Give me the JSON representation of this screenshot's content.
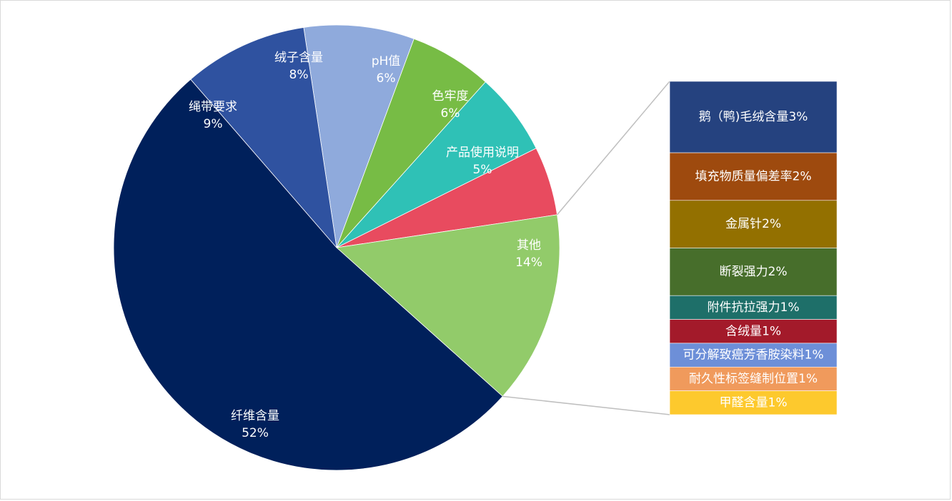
{
  "chart_data": {
    "type": "pie",
    "series": [
      {
        "category": "绒子含量",
        "value": 8,
        "label": "8%",
        "color": "#8faadc"
      },
      {
        "category": "pH值",
        "value": 6,
        "label": "6%",
        "color": "#77bc45"
      },
      {
        "category": "色牢度",
        "value": 6,
        "label": "6%",
        "color": "#2fc1b6"
      },
      {
        "category": "产品使用说明",
        "value": 5,
        "label": "5%",
        "color": "#e84b5f"
      },
      {
        "category": "其他",
        "value": 14,
        "label": "14%",
        "color": "#92cb6a"
      },
      {
        "category": "纤维含量",
        "value": 52,
        "label": "52%",
        "color": "#00205b"
      },
      {
        "category": "绳带要求",
        "value": 9,
        "label": "9%",
        "color": "#2f52a0"
      }
    ],
    "breakdown": {
      "parent": "其他",
      "items": [
        {
          "label": "鹅（鸭)毛绒含量3%",
          "value": 3,
          "color": "#25427f"
        },
        {
          "label": "填充物质量偏差率2%",
          "value": 2,
          "color": "#9e4a0e"
        },
        {
          "label": "金属针2%",
          "value": 2,
          "color": "#937000"
        },
        {
          "label": "断裂强力2%",
          "value": 2,
          "color": "#476e2b"
        },
        {
          "label": "附件抗拉强力1%",
          "value": 1,
          "color": "#1e6f69"
        },
        {
          "label": "含绒量1%",
          "value": 1,
          "color": "#a31a2a"
        },
        {
          "label": "可分解致癌芳香胺染料1%",
          "value": 1,
          "color": "#6d8fd8"
        },
        {
          "label": "耐久性标签缝制位置1%",
          "value": 1,
          "color": "#f09a5c"
        },
        {
          "label": "甲醛含量1%",
          "value": 1,
          "color": "#fdc92d"
        }
      ]
    }
  }
}
